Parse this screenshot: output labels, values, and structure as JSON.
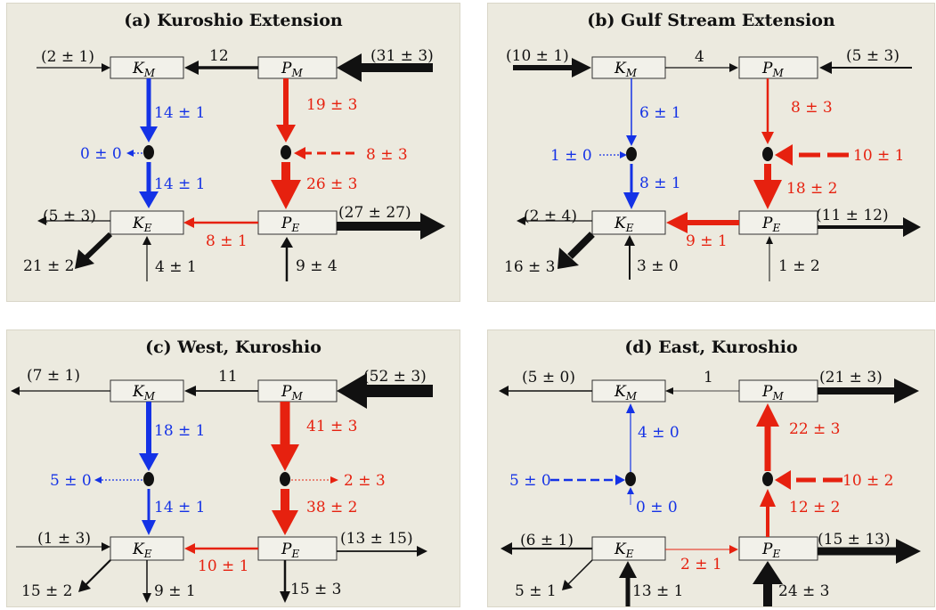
{
  "colors": {
    "blue": "#1432e6",
    "red": "#e6210f",
    "black": "#111111",
    "panel_bg": "#eceadf"
  },
  "panels": {
    "a": {
      "title": "(a) Kuroshio Extension",
      "boxes": {
        "km_label": "K",
        "km_sub": "M",
        "pm_label": "P",
        "pm_sub": "M",
        "ke_label": "K",
        "ke_sub": "E",
        "pe_label": "P",
        "pe_sub": "E"
      },
      "values": {
        "km_in": "(2 ± 1)",
        "pm_km": "12",
        "pm_in": "(31 ± 3)",
        "km_down": "14 ± 1",
        "pm_down": "19 ± 3",
        "blue_side": "0 ± 0",
        "red_side": "8 ± 3",
        "ke_up": "14 ± 1",
        "pe_up": "26 ± 3",
        "ke_left": "(5 ± 3)",
        "pe_ke": "8 ± 1",
        "pe_right": "(27 ± 27)",
        "ke_diag": "21 ± 2",
        "ke_bottom": "4 ± 1",
        "pe_bottom": "9 ± 4"
      }
    },
    "b": {
      "title": "(b) Gulf Stream Extension",
      "boxes": {
        "km_label": "K",
        "km_sub": "M",
        "pm_label": "P",
        "pm_sub": "M",
        "ke_label": "K",
        "ke_sub": "E",
        "pe_label": "P",
        "pe_sub": "E"
      },
      "values": {
        "km_in": "(10 ± 1)",
        "km_pm": "4",
        "pm_in": "(5 ± 3)",
        "km_down": "6 ± 1",
        "pm_down": "8 ± 3",
        "blue_side": "1 ± 0",
        "red_side": "10 ± 1",
        "ke_up": "8 ± 1",
        "pe_up": "18 ± 2",
        "ke_left": "(2 ± 4)",
        "pe_ke": "9 ± 1",
        "pe_right": "(11 ± 12)",
        "ke_diag": "16 ± 3",
        "ke_bottom": "3 ± 0",
        "pe_bottom": "1 ± 2"
      }
    },
    "c": {
      "title": "(c) West, Kuroshio",
      "boxes": {
        "km_label": "K",
        "km_sub": "M",
        "pm_label": "P",
        "pm_sub": "M",
        "ke_label": "K",
        "ke_sub": "E",
        "pe_label": "P",
        "pe_sub": "E"
      },
      "values": {
        "km_out": "(7 ± 1)",
        "pm_km": "11",
        "pm_in": "(52 ± 3)",
        "km_down": "18 ± 1",
        "pm_down": "41 ± 3",
        "blue_side": "5 ± 0",
        "red_side": "2 ± 3",
        "ke_up": "14 ± 1",
        "pe_up": "38 ± 2",
        "ke_in": "(1 ± 3)",
        "pe_ke": "10 ± 1",
        "pe_right": "(13 ± 15)",
        "ke_diag": "15 ± 2",
        "ke_bottom": "9 ± 1",
        "pe_bottom": "15 ± 3"
      }
    },
    "d": {
      "title": "(d) East, Kuroshio",
      "boxes": {
        "km_label": "K",
        "km_sub": "M",
        "pm_label": "P",
        "pm_sub": "M",
        "ke_label": "K",
        "ke_sub": "E",
        "pe_label": "P",
        "pe_sub": "E"
      },
      "values": {
        "km_out": "(5 ± 0)",
        "pm_km": "1",
        "pm_out": "(21 ± 3)",
        "km_up": "4 ± 0",
        "pm_up": "22 ± 3",
        "blue_side": "5 ± 0",
        "red_side": "10 ± 2",
        "ke_up": "0 ± 0",
        "pe_up": "12 ± 2",
        "ke_left": "(6 ± 1)",
        "ke_pe": "2 ± 1",
        "pe_right": "(15 ± 13)",
        "ke_diag": "5 ± 1",
        "ke_bottom": "13 ± 1",
        "pe_bottom": "24 ± 3"
      }
    }
  }
}
